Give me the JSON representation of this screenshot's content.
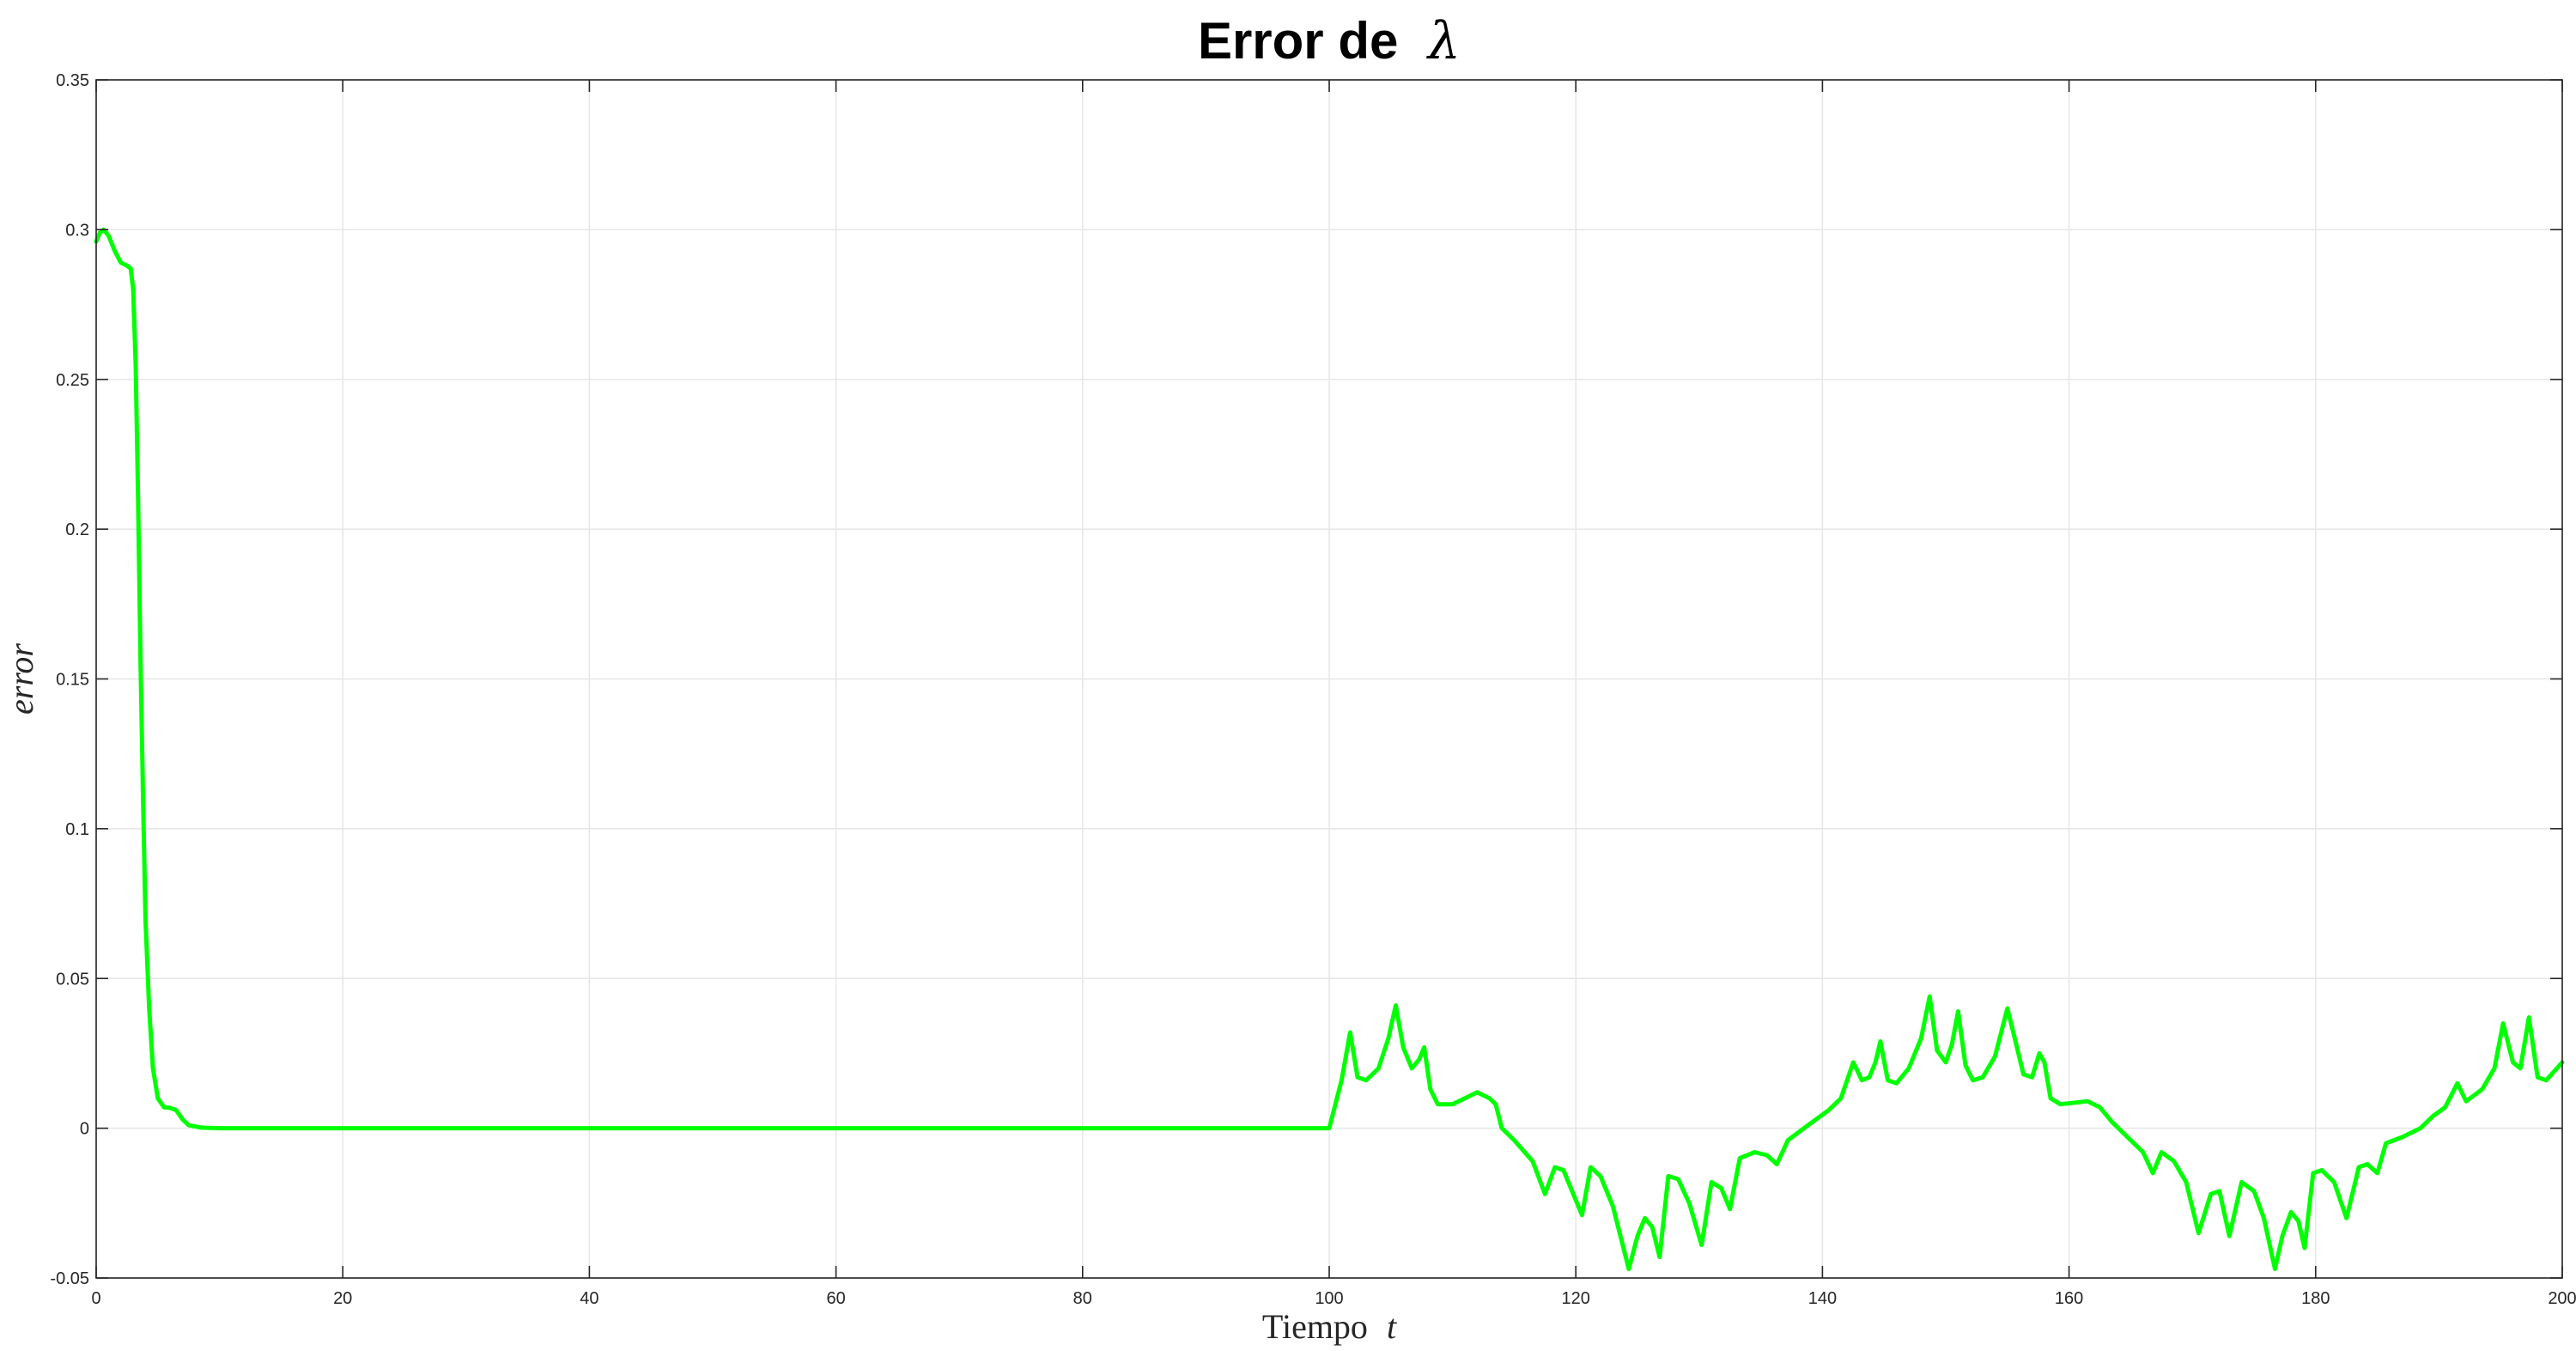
{
  "chart_data": {
    "type": "line",
    "title": "Error de",
    "title_symbol": "λ",
    "xlabel": "Tiempo",
    "xlabel_symbol": "t",
    "ylabel": "error",
    "xlim": [
      0,
      200
    ],
    "ylim": [
      -0.05,
      0.35
    ],
    "xticks": [
      0,
      20,
      40,
      60,
      80,
      100,
      120,
      140,
      160,
      180,
      200
    ],
    "yticks": [
      -0.05,
      0,
      0.05,
      0.1,
      0.15,
      0.2,
      0.25,
      0.3,
      0.35
    ],
    "xtick_labels": [
      "0",
      "20",
      "40",
      "60",
      "80",
      "100",
      "120",
      "140",
      "160",
      "180",
      "200"
    ],
    "ytick_labels": [
      "-0.05",
      "0",
      "0.05",
      "0.1",
      "0.15",
      "0.2",
      "0.25",
      "0.3",
      "0.35"
    ],
    "grid": true,
    "series": [
      {
        "color": "#00ff00",
        "points": [
          [
            0,
            0.296
          ],
          [
            0.3,
            0.299
          ],
          [
            0.6,
            0.3
          ],
          [
            1.0,
            0.298
          ],
          [
            1.5,
            0.293
          ],
          [
            2.0,
            0.289
          ],
          [
            2.5,
            0.288
          ],
          [
            2.8,
            0.287
          ],
          [
            3.0,
            0.28
          ],
          [
            3.2,
            0.255
          ],
          [
            3.4,
            0.21
          ],
          [
            3.6,
            0.155
          ],
          [
            3.8,
            0.11
          ],
          [
            4.0,
            0.07
          ],
          [
            4.3,
            0.04
          ],
          [
            4.6,
            0.02
          ],
          [
            5.0,
            0.01
          ],
          [
            5.5,
            0.007
          ],
          [
            6.0,
            0.0068
          ],
          [
            6.5,
            0.006
          ],
          [
            7.0,
            0.003
          ],
          [
            7.5,
            0.001
          ],
          [
            8.5,
            0.0002
          ],
          [
            10,
            0
          ],
          [
            100,
            0
          ],
          [
            100.5,
            0.008
          ],
          [
            101,
            0.016
          ],
          [
            101.7,
            0.032
          ],
          [
            102.3,
            0.017
          ],
          [
            103,
            0.016
          ],
          [
            104,
            0.02
          ],
          [
            104.8,
            0.03
          ],
          [
            105.4,
            0.041
          ],
          [
            106,
            0.027
          ],
          [
            106.7,
            0.02
          ],
          [
            107.3,
            0.023
          ],
          [
            107.7,
            0.027
          ],
          [
            108.2,
            0.013
          ],
          [
            108.8,
            0.008
          ],
          [
            110,
            0.008
          ],
          [
            111,
            0.01
          ],
          [
            112,
            0.012
          ],
          [
            113,
            0.01
          ],
          [
            113.5,
            0.008
          ],
          [
            114,
            0.0
          ],
          [
            115,
            -0.004
          ],
          [
            116.5,
            -0.011
          ],
          [
            117.5,
            -0.022
          ],
          [
            118.3,
            -0.013
          ],
          [
            119,
            -0.014
          ],
          [
            119.8,
            -0.022
          ],
          [
            120.5,
            -0.029
          ],
          [
            121.2,
            -0.013
          ],
          [
            122,
            -0.016
          ],
          [
            123,
            -0.026
          ],
          [
            124.3,
            -0.047
          ],
          [
            125,
            -0.036
          ],
          [
            125.6,
            -0.03
          ],
          [
            126.2,
            -0.033
          ],
          [
            126.8,
            -0.043
          ],
          [
            127.5,
            -0.016
          ],
          [
            128.3,
            -0.017
          ],
          [
            129.2,
            -0.025
          ],
          [
            130.2,
            -0.039
          ],
          [
            131,
            -0.018
          ],
          [
            131.8,
            -0.02
          ],
          [
            132.5,
            -0.027
          ],
          [
            133.3,
            -0.01
          ],
          [
            134.5,
            -0.008
          ],
          [
            135.5,
            -0.009
          ],
          [
            136.3,
            -0.012
          ],
          [
            137.2,
            -0.004
          ],
          [
            138.5,
            0.0
          ],
          [
            139.5,
            0.003
          ],
          [
            140.5,
            0.006
          ],
          [
            141.5,
            0.01
          ],
          [
            142.5,
            0.022
          ],
          [
            143.2,
            0.016
          ],
          [
            143.8,
            0.017
          ],
          [
            144.3,
            0.022
          ],
          [
            144.7,
            0.029
          ],
          [
            145.3,
            0.016
          ],
          [
            146,
            0.015
          ],
          [
            147,
            0.02
          ],
          [
            148,
            0.03
          ],
          [
            148.7,
            0.044
          ],
          [
            149.3,
            0.026
          ],
          [
            150,
            0.022
          ],
          [
            150.5,
            0.028
          ],
          [
            151,
            0.039
          ],
          [
            151.6,
            0.021
          ],
          [
            152.2,
            0.016
          ],
          [
            153,
            0.017
          ],
          [
            154,
            0.024
          ],
          [
            155,
            0.04
          ],
          [
            155.6,
            0.03
          ],
          [
            156.3,
            0.018
          ],
          [
            157,
            0.017
          ],
          [
            157.6,
            0.025
          ],
          [
            158,
            0.022
          ],
          [
            158.5,
            0.01
          ],
          [
            159.3,
            0.008
          ],
          [
            161.5,
            0.009
          ],
          [
            162.5,
            0.007
          ],
          [
            163.5,
            0.002
          ],
          [
            165,
            -0.004
          ],
          [
            166,
            -0.008
          ],
          [
            166.8,
            -0.015
          ],
          [
            167.5,
            -0.008
          ],
          [
            168.5,
            -0.011
          ],
          [
            169.5,
            -0.018
          ],
          [
            170.5,
            -0.035
          ],
          [
            171.5,
            -0.022
          ],
          [
            172.2,
            -0.021
          ],
          [
            173,
            -0.036
          ],
          [
            174,
            -0.018
          ],
          [
            175,
            -0.021
          ],
          [
            175.8,
            -0.03
          ],
          [
            176.7,
            -0.047
          ],
          [
            177.3,
            -0.036
          ],
          [
            178,
            -0.028
          ],
          [
            178.6,
            -0.031
          ],
          [
            179.1,
            -0.04
          ],
          [
            179.8,
            -0.015
          ],
          [
            180.5,
            -0.014
          ],
          [
            181.5,
            -0.018
          ],
          [
            182.5,
            -0.03
          ],
          [
            183.5,
            -0.013
          ],
          [
            184.2,
            -0.012
          ],
          [
            185,
            -0.015
          ],
          [
            185.7,
            -0.005
          ],
          [
            187,
            -0.003
          ],
          [
            188.5,
            0.0
          ],
          [
            189.5,
            0.004
          ],
          [
            190.5,
            0.007
          ],
          [
            191.5,
            0.015
          ],
          [
            192.2,
            0.009
          ],
          [
            193.5,
            0.013
          ],
          [
            194.5,
            0.02
          ],
          [
            195.2,
            0.035
          ],
          [
            196,
            0.022
          ],
          [
            196.6,
            0.02
          ],
          [
            197.3,
            0.037
          ],
          [
            198,
            0.017
          ],
          [
            198.7,
            0.016
          ],
          [
            200,
            0.022
          ]
        ]
      }
    ]
  }
}
